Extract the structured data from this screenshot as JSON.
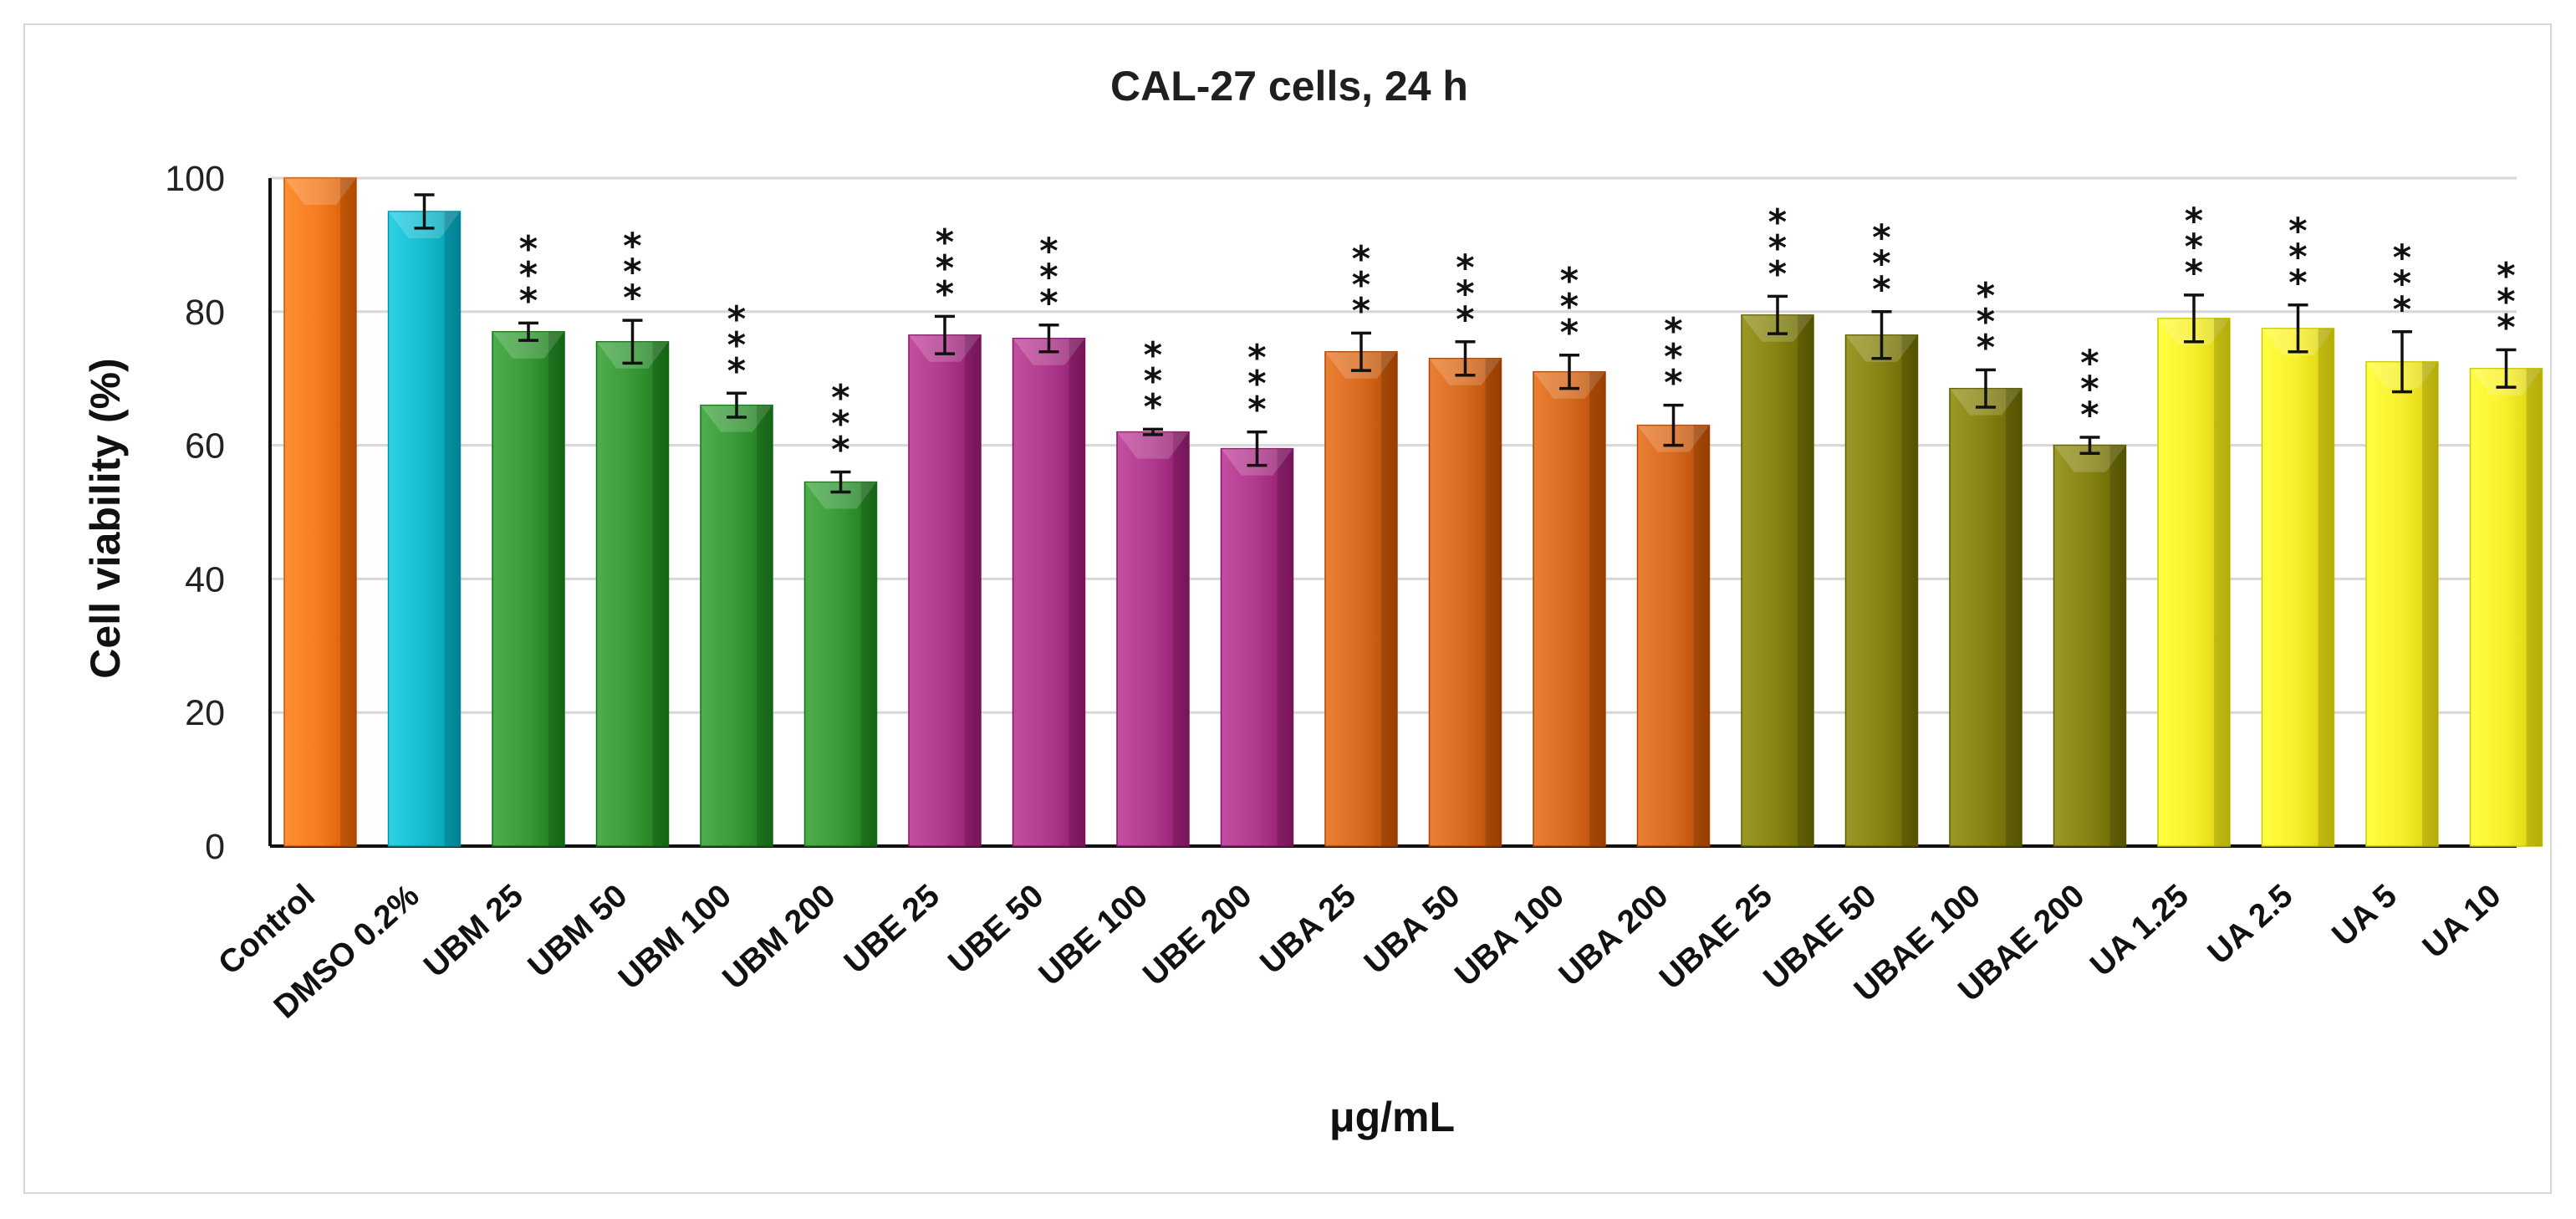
{
  "chart_data": {
    "type": "bar",
    "title": "CAL-27 cells, 24 h",
    "xlabel": "μg/mL",
    "ylabel": "Cell viability  (%)",
    "ylim": [
      0,
      100
    ],
    "y_ticks": [
      0,
      20,
      40,
      60,
      80,
      100
    ],
    "grid": true,
    "categories": [
      "Control",
      "DMSO 0.2%",
      "UBM 25",
      "UBM 50",
      "UBM 100",
      "UBM 200",
      "UBE 25",
      "UBE 50",
      "UBE 100",
      "UBE 200",
      "UBA 25",
      "UBA 50",
      "UBA 100",
      "UBA 200",
      "UBAE 25",
      "UBAE 50",
      "UBAE 100",
      "UBAE 200",
      "UA 1.25",
      "UA 2.5",
      "UA 5",
      "UA 10"
    ],
    "values": [
      100,
      95.0,
      77.0,
      75.5,
      66.0,
      54.5,
      76.5,
      76.0,
      62.0,
      59.5,
      74.0,
      73.0,
      71.0,
      63.0,
      79.5,
      76.5,
      68.5,
      60.0,
      79.0,
      77.5,
      72.5,
      71.5
    ],
    "errors": [
      0,
      2.5,
      1.3,
      3.2,
      1.8,
      1.5,
      2.8,
      2.0,
      0.4,
      2.5,
      2.8,
      2.5,
      2.5,
      3.0,
      2.8,
      3.5,
      2.8,
      1.2,
      3.5,
      3.5,
      4.5,
      2.8
    ],
    "significance": [
      "",
      "",
      "***",
      "***",
      "***",
      "***",
      "***",
      "***",
      "***",
      "***",
      "***",
      "***",
      "***",
      "***",
      "***",
      "***",
      "***",
      "***",
      "***",
      "***",
      "***",
      "***"
    ],
    "colors": [
      "#f47b20",
      "#18bdd0",
      "#3a9a3a",
      "#3a9a3a",
      "#3a9a3a",
      "#3a9a3a",
      "#b03a8d",
      "#b03a8d",
      "#b03a8d",
      "#b03a8d",
      "#d76b1f",
      "#d76b1f",
      "#d76b1f",
      "#d76b1f",
      "#868412",
      "#868412",
      "#868412",
      "#868412",
      "#f8ef2d",
      "#f8ef2d",
      "#f8ef2d",
      "#f8ef2d"
    ]
  }
}
